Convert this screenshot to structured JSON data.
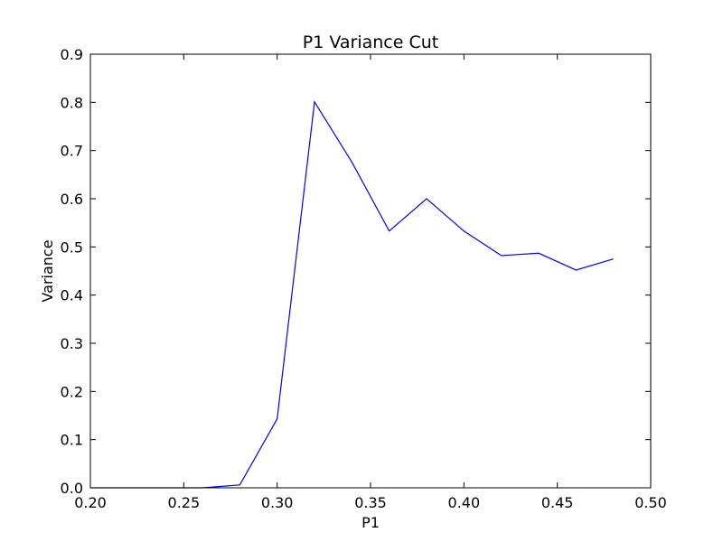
{
  "chart_data": {
    "type": "line",
    "title": "P1 Variance Cut",
    "xlabel": "P1",
    "ylabel": "Variance",
    "xlim": [
      0.2,
      0.5
    ],
    "ylim": [
      0.0,
      0.9
    ],
    "x_ticks": [
      "0.20",
      "0.25",
      "0.30",
      "0.35",
      "0.40",
      "0.45",
      "0.50"
    ],
    "y_ticks": [
      "0.0",
      "0.1",
      "0.2",
      "0.3",
      "0.4",
      "0.5",
      "0.6",
      "0.7",
      "0.8",
      "0.9"
    ],
    "grid": false,
    "series": [
      {
        "color": "#0000ff",
        "x": [
          0.2,
          0.22,
          0.24,
          0.26,
          0.28,
          0.3,
          0.32,
          0.34,
          0.36,
          0.38,
          0.4,
          0.42,
          0.44,
          0.46,
          0.48
        ],
        "y": [
          0.0,
          0.0,
          0.0,
          0.0,
          0.006,
          0.143,
          0.801,
          0.676,
          0.533,
          0.6,
          0.533,
          0.482,
          0.487,
          0.452,
          0.475
        ]
      }
    ]
  }
}
